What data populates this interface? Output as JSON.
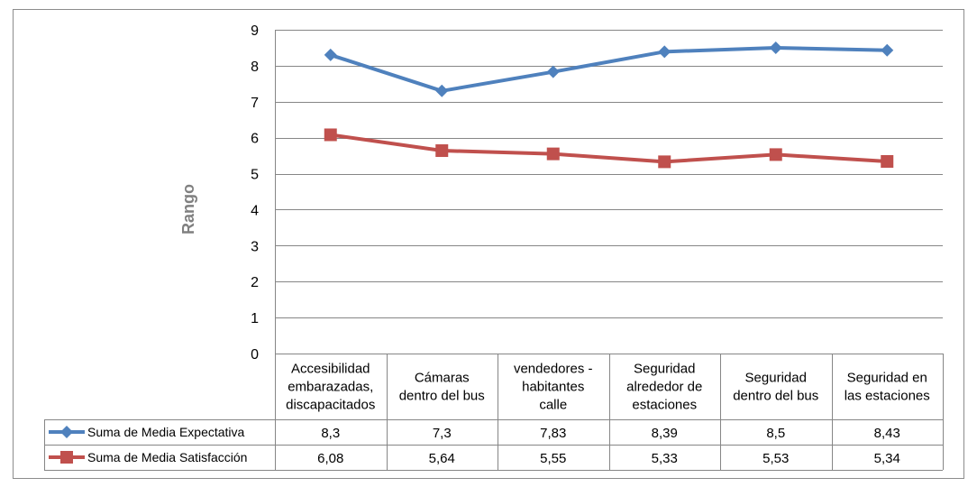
{
  "chart_data": {
    "type": "line",
    "title": "",
    "xlabel": "",
    "ylabel": "Rango",
    "ylim": [
      0,
      9
    ],
    "yticks": [
      0,
      1,
      2,
      3,
      4,
      5,
      6,
      7,
      8,
      9
    ],
    "grid": true,
    "legend": "data-table-left",
    "categories": [
      [
        "Accesibilidad",
        "embarazadas,",
        "discapacitados"
      ],
      [
        "Cámaras",
        "dentro del bus"
      ],
      [
        "vendedores -",
        "habitantes",
        "calle"
      ],
      [
        "Seguridad",
        "alrededor de",
        "estaciones"
      ],
      [
        "Seguridad",
        "dentro del bus"
      ],
      [
        "Seguridad en",
        "las estaciones"
      ]
    ],
    "series": [
      {
        "name": "Suma de Media Expectativa",
        "values": [
          8.3,
          7.3,
          7.83,
          8.39,
          8.5,
          8.43
        ],
        "labels": [
          "8,3",
          "7,3",
          "7,83",
          "8,39",
          "8,5",
          "8,43"
        ],
        "color": "#4F81BD",
        "marker": "diamond"
      },
      {
        "name": "Suma de Media Satisfacción",
        "values": [
          6.08,
          5.64,
          5.55,
          5.33,
          5.53,
          5.34
        ],
        "labels": [
          "6,08",
          "5,64",
          "5,55",
          "5,33",
          "5,53",
          "5,34"
        ],
        "color": "#C0504D",
        "marker": "square"
      }
    ]
  }
}
